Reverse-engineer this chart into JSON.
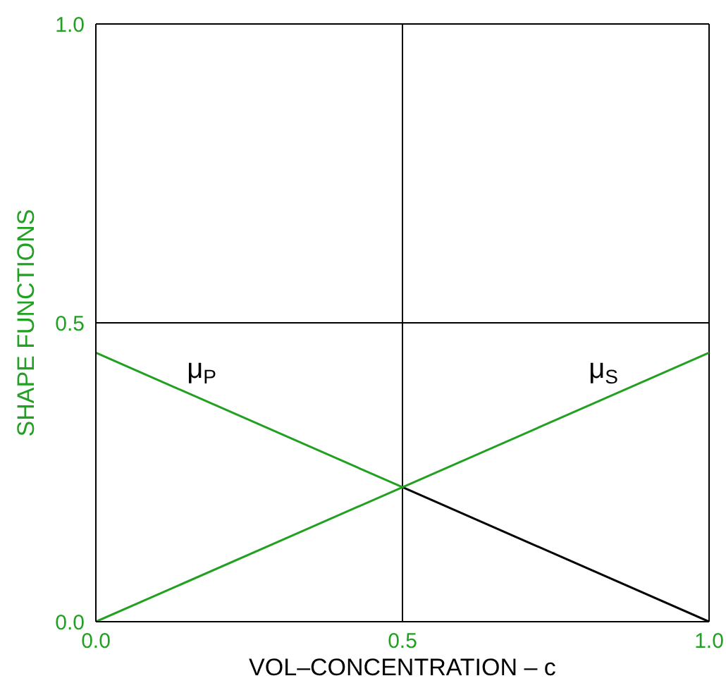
{
  "chart_data": {
    "type": "line",
    "xlabel": "VOL–CONCENTRATION – c",
    "ylabel": "SHAPE  FUNCTIONS",
    "xlim": [
      0,
      1
    ],
    "ylim": [
      0,
      1
    ],
    "xticks": [
      {
        "value": 0,
        "label": "0.0"
      },
      0.5,
      {
        "value": 1,
        "label": "1.0"
      }
    ],
    "yticks": [
      {
        "value": 0,
        "label": "0.0"
      },
      0.5,
      {
        "value": 1,
        "label": "1.0"
      }
    ],
    "grid": true,
    "marker": "none",
    "line_style": "solid",
    "series": [
      {
        "name": "μ$_{P}$",
        "color": "#22a022",
        "x": [
          0,
          0.5
        ],
        "values": [
          0.45,
          0.225
        ]
      },
      {
        "color": "#000000",
        "x": [
          0.5,
          1
        ],
        "values": [
          0.225,
          0
        ]
      },
      {
        "name": "μ$_{S}$",
        "color": "#22a022",
        "x": [
          0,
          1
        ],
        "values": [
          0,
          0.45
        ]
      }
    ]
  }
}
